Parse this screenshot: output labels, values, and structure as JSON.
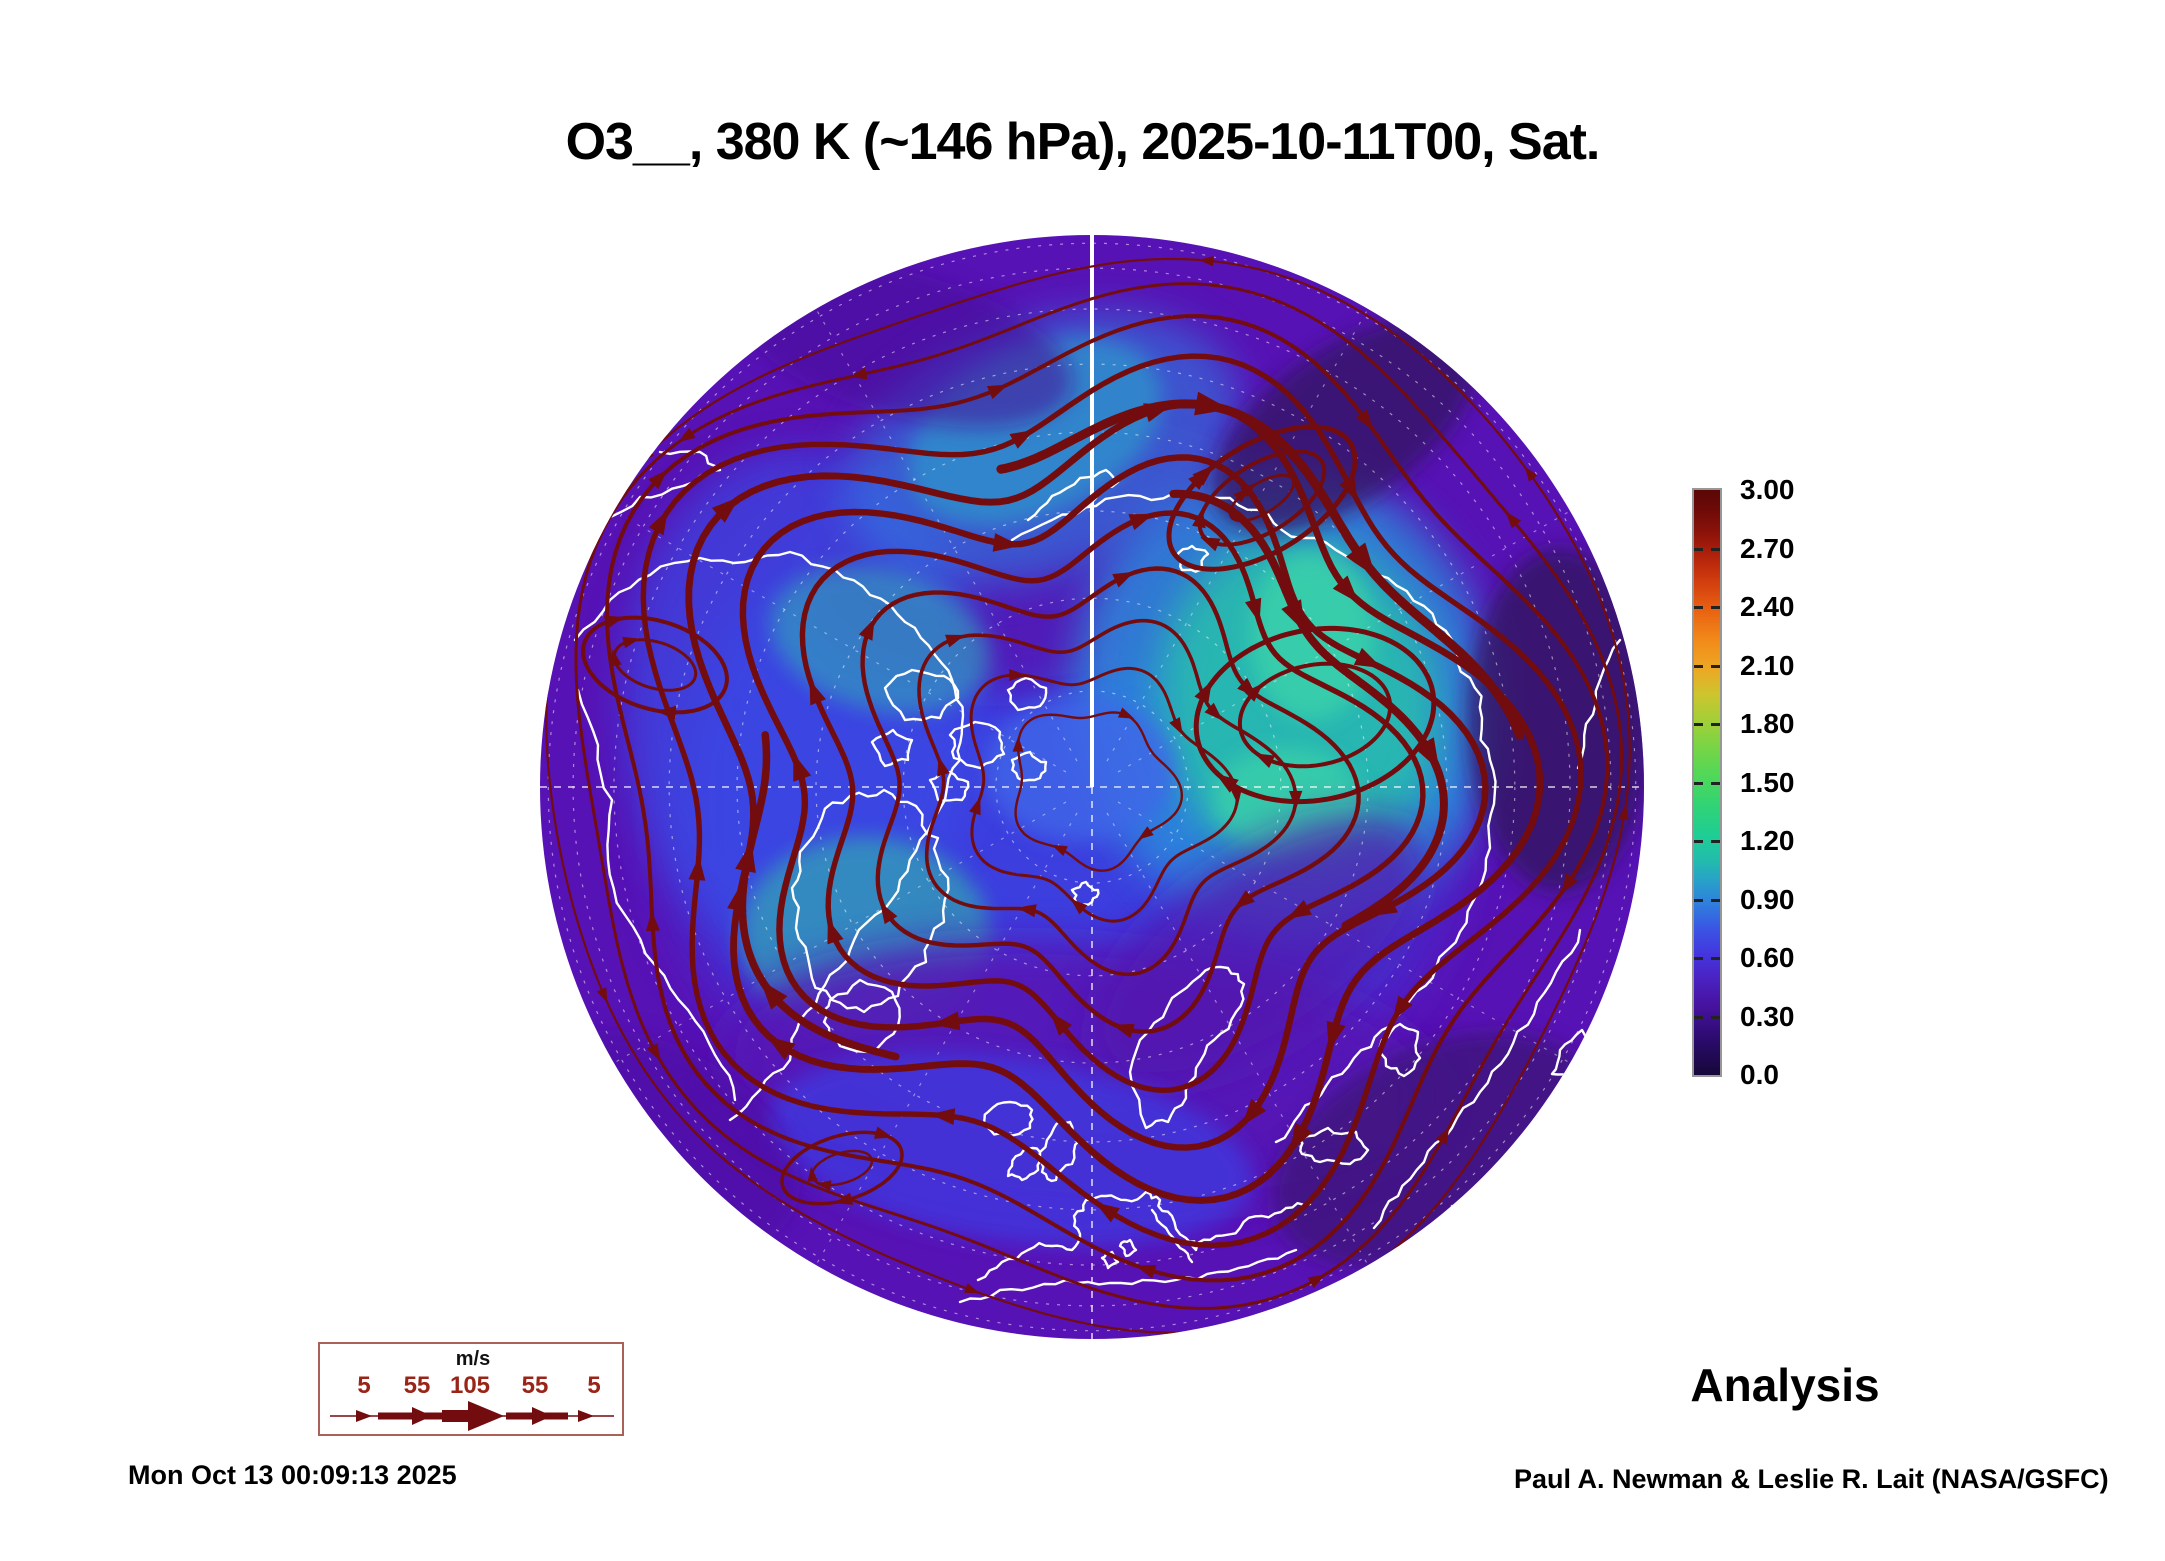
{
  "title": "O3__, 380 K (~146 hPa), 2025-10-11T00, Sat.",
  "footer": {
    "timestamp": "Mon Oct 13 00:09:13 2025",
    "analysis_label": "Analysis",
    "credit": "Paul A. Newman & Leslie R. Lait (NASA/GSFC)"
  },
  "wind_legend": {
    "units_label": "m/s",
    "speed_labels": [
      "5",
      "55",
      "105",
      "55",
      "5"
    ]
  },
  "colorbar": {
    "min": 0,
    "max": 3,
    "tick_labels": [
      "3.00",
      "2.70",
      "2.40",
      "2.10",
      "1.80",
      "1.50",
      "1.20",
      "0.90",
      "0.60",
      "0.30",
      "0.0"
    ],
    "stops": [
      {
        "v": 0.0,
        "c": "#150838"
      },
      {
        "v": 0.2,
        "c": "#2e0b72"
      },
      {
        "v": 0.35,
        "c": "#46129e"
      },
      {
        "v": 0.5,
        "c": "#4a23c4"
      },
      {
        "v": 0.62,
        "c": "#4336de"
      },
      {
        "v": 0.75,
        "c": "#3a55e4"
      },
      {
        "v": 0.88,
        "c": "#2f7fdd"
      },
      {
        "v": 1.0,
        "c": "#28a2c8"
      },
      {
        "v": 1.1,
        "c": "#22bcac"
      },
      {
        "v": 1.22,
        "c": "#1ecd96"
      },
      {
        "v": 1.38,
        "c": "#30d375"
      },
      {
        "v": 1.52,
        "c": "#4cd85b"
      },
      {
        "v": 1.68,
        "c": "#78d545"
      },
      {
        "v": 1.82,
        "c": "#a3cf38"
      },
      {
        "v": 1.95,
        "c": "#ccc52e"
      },
      {
        "v": 2.08,
        "c": "#eca824"
      },
      {
        "v": 2.22,
        "c": "#f28c1a"
      },
      {
        "v": 2.38,
        "c": "#e96312"
      },
      {
        "v": 2.52,
        "c": "#d4400e"
      },
      {
        "v": 2.65,
        "c": "#b5240c"
      },
      {
        "v": 2.78,
        "c": "#8c120a"
      },
      {
        "v": 2.9,
        "c": "#6d0a08"
      },
      {
        "v": 3.0,
        "c": "#5a0706"
      }
    ]
  },
  "colors": {
    "streamline": "#720c0e",
    "coastline": "#ffffff",
    "graticule": "#ffffff",
    "purple_base": "#5712b5",
    "blue_mid": "#3b43e2",
    "teal_high": "#25c9a4",
    "navy_low": "#321260",
    "legend_red": "#992417",
    "legend_border": "#aa6258",
    "text": "#000000"
  },
  "chart_data": {
    "type": "heatmap",
    "title": "O3__, 380 K (~146 hPa), 2025-10-11T00, Sat.",
    "variable": "Ozone mixing ratio (O3)",
    "level": "380 K (~146 hPa)",
    "valid_time": "2025-10-11T00",
    "valid_day": "Sat.",
    "projection": "north-polar hemispheric disc, Europe at bottom, North America left, Siberia upper right",
    "colorbar_range": [
      0.0,
      3.0
    ],
    "colorbar_tick_interval": 0.3,
    "colorbar_ticks": [
      3.0,
      2.7,
      2.4,
      2.1,
      1.8,
      1.5,
      1.2,
      0.9,
      0.6,
      0.3,
      0.0
    ],
    "field_regions": [
      {
        "area": "tropical/subtropical rim of disc",
        "approx_value": 0.25,
        "appearance": "purple"
      },
      {
        "area": "darkest rim patches (NW Pacific, E Siberia rim, SE rim)",
        "approx_value": 0.1,
        "appearance": "dark navy"
      },
      {
        "area": "midlatitude/polar interior",
        "approx_value": 0.6,
        "appearance": "blue"
      },
      {
        "area": "Kara/Barents sector and central Arctic maxima",
        "approx_value": 1.1,
        "appearance": "cyan-teal"
      },
      {
        "area": "Canadian Arctic / Greenland patches",
        "approx_value": 1.0,
        "appearance": "teal"
      }
    ],
    "overlays": [
      {
        "name": "wind streamlines",
        "color": "dark maroon",
        "units": "m/s",
        "legend_speeds": [
          5,
          55,
          105,
          55,
          5
        ],
        "pattern": "counterclockwise circumpolar vortex with anticyclonic eddy over Siberian sector"
      },
      {
        "name": "coastlines",
        "color": "white"
      },
      {
        "name": "latitude-longitude graticule",
        "style": "dashed white, solid white meridian from pole to top rim"
      }
    ],
    "annotations": [
      "Analysis",
      "Mon Oct 13 00:09:13 2025",
      "Paul A. Newman & Leslie R. Lait (NASA/GSFC)"
    ]
  }
}
